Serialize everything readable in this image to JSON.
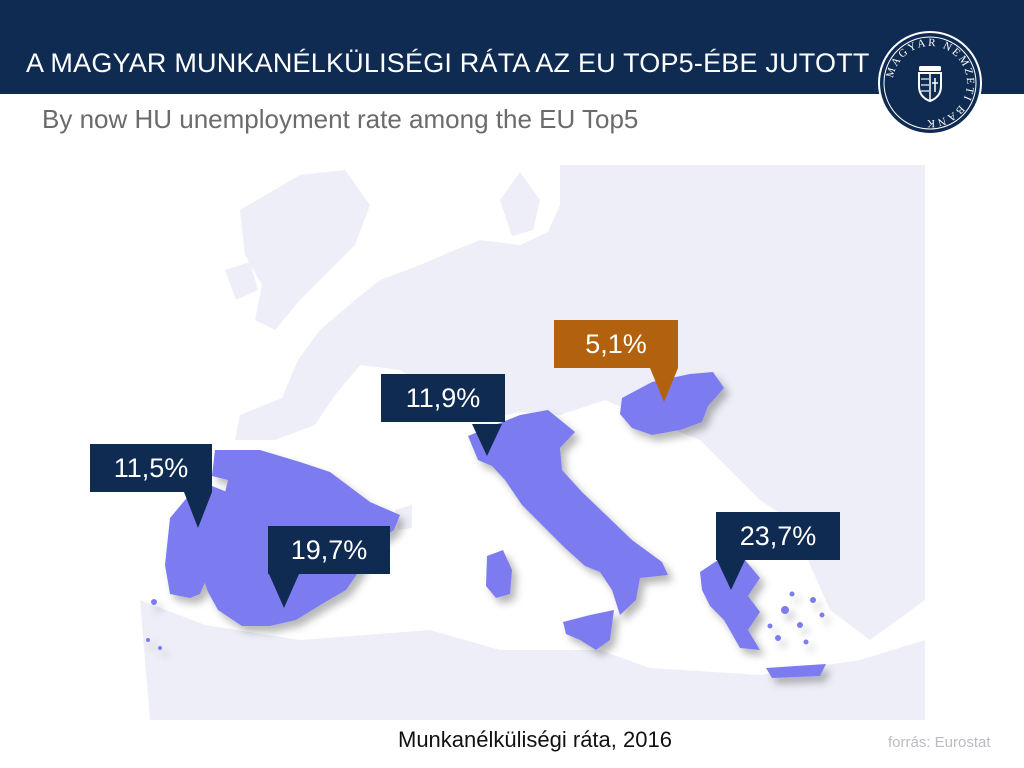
{
  "header": {
    "title": "A MAGYAR MUNKANÉLKÜLISÉGI RÁTA AZ EU TOP5-ÉBE JUTOTT",
    "subtitle": "By now HU unemployment rate among the EU Top5"
  },
  "logo": {
    "text": "MAGYAR NEMZETI BANK",
    "icon": "coat-of-arms-icon"
  },
  "map": {
    "labels": [
      {
        "country": "Portugal",
        "value": "11,5%",
        "highlight": false
      },
      {
        "country": "Spain",
        "value": "19,7%",
        "highlight": false
      },
      {
        "country": "Italy",
        "value": "11,9%",
        "highlight": false
      },
      {
        "country": "Hungary",
        "value": "5,1%",
        "highlight": true
      },
      {
        "country": "Greece",
        "value": "23,7%",
        "highlight": false
      }
    ],
    "colors": {
      "highlighted_country": "#7b7bf0",
      "background_land": "#eeeef8",
      "dark_label": "#0f2b52",
      "hu_label": "#b2620e"
    }
  },
  "footer": {
    "caption": "Munkanélküliségi ráta,",
    "year": "2016",
    "source": "forrás: Eurostat"
  }
}
